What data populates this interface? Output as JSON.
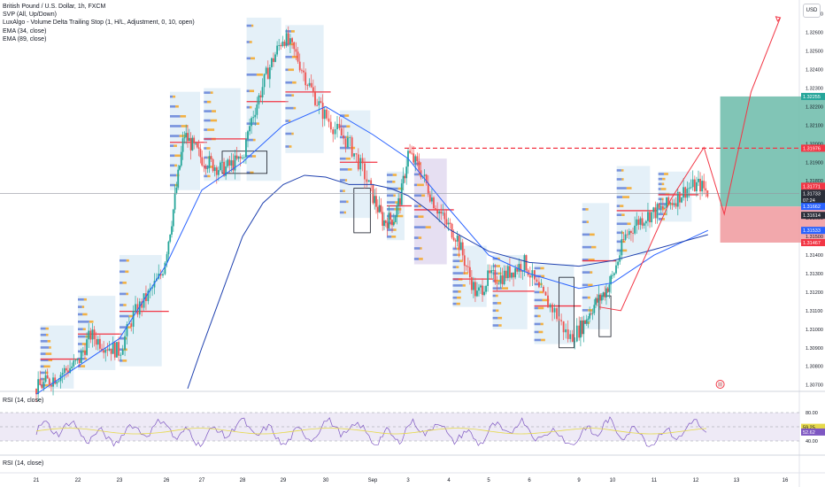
{
  "legend": {
    "symbol": "British Pound / U.S. Dollar, 1h, FXCM",
    "ind1": "SVP (All, Up/Down)",
    "ind2": "LuxAlgo - Volume Delta Trailing Stop (1, H/L, Adjustment, 0, 10, open)",
    "ind3": "EMA (34, close)",
    "ind4": "EMA (89, close)"
  },
  "currency_button": "USD",
  "rsi_panel_1": {
    "label": "RSI (14, close)",
    "levels": [
      "80.00",
      "60.00",
      "40.00"
    ],
    "badges": [
      "59.25",
      "52.62"
    ]
  },
  "rsi_panel_2": {
    "label": "RSI (14, close)"
  },
  "colors": {
    "up": "#26a69a",
    "down": "#ef5350",
    "ema_blue": "#2962ff",
    "poc": "#f23645",
    "svp_up": "#5b7bd6",
    "svp_down": "#f5a623",
    "box_blue": "#b3d4ea",
    "box_purple": "#b8a3d9",
    "target": "#73bfae",
    "stop": "#f19fa3",
    "rsi_line": "#7e57c2",
    "rsi_ma": "#e6d94a",
    "rsi_band": "#ece8f5"
  },
  "chart_data": {
    "type": "candlestick",
    "title": "British Pound / U.S. Dollar, 1h, FXCM",
    "x_ticks": [
      "21",
      "22",
      "23",
      "26",
      "27",
      "28",
      "29",
      "30",
      "Sep",
      "3",
      "4",
      "5",
      "6",
      "9",
      "10",
      "11",
      "12",
      "13",
      "16"
    ],
    "y_ticks": [
      "1.32700",
      "1.32600",
      "1.32500",
      "1.32400",
      "1.32300",
      "1.32200",
      "1.32100",
      "1.32000",
      "1.31900",
      "1.31800",
      "1.31700",
      "1.31600",
      "1.31500",
      "1.31400",
      "1.31300",
      "1.31200",
      "1.31100",
      "1.31000",
      "1.30900",
      "1.30800",
      "1.30700"
    ],
    "ylim": [
      1.30665,
      1.32775
    ],
    "price_badges": [
      {
        "label": "1.32255",
        "value": 1.32255,
        "color": "#26a69a"
      },
      {
        "label": "1.31976",
        "value": 1.31976,
        "color": "#f23645"
      },
      {
        "label": "1.31771",
        "value": 1.31771,
        "color": "#f23645"
      },
      {
        "label": "1.31733",
        "value": 1.31733,
        "color": "#2a2e39"
      },
      {
        "label": "07:24",
        "value": 1.31697,
        "color": "#2a2e39"
      },
      {
        "label": "1.31662",
        "value": 1.31662,
        "color": "#2962ff"
      },
      {
        "label": "1.31614",
        "value": 1.31614,
        "color": "#2a2e39"
      },
      {
        "label": "1.31533",
        "value": 1.31533,
        "color": "#2962ff"
      },
      {
        "label": "1.31467",
        "value": 1.31467,
        "color": "#f23645"
      }
    ],
    "close_path": [
      [
        21,
        1.3068
      ],
      [
        22,
        1.3082
      ],
      [
        22.3,
        1.3097
      ],
      [
        22.6,
        1.3092
      ],
      [
        23,
        1.3088
      ],
      [
        23.3,
        1.3108
      ],
      [
        23.6,
        1.3118
      ],
      [
        23.9,
        1.313
      ],
      [
        24.2,
        1.3165
      ],
      [
        24.5,
        1.3205
      ],
      [
        25.0,
        1.3192
      ],
      [
        25.5,
        1.3186
      ],
      [
        26.0,
        1.3192
      ],
      [
        26.2,
        1.3212
      ],
      [
        26.6,
        1.3238
      ],
      [
        27.0,
        1.3258
      ],
      [
        27.3,
        1.3248
      ],
      [
        27.6,
        1.3232
      ],
      [
        27.9,
        1.3218
      ],
      [
        28.2,
        1.3208
      ],
      [
        28.5,
        1.32
      ],
      [
        28.8,
        1.3185
      ],
      [
        29.0,
        1.3172
      ],
      [
        29.3,
        1.3158
      ],
      [
        29.6,
        1.316
      ],
      [
        29.8,
        1.3172
      ],
      [
        30.0,
        1.3195
      ],
      [
        30.3,
        1.3186
      ],
      [
        30.6,
        1.317
      ],
      [
        30.9,
        1.3158
      ],
      [
        31.2,
        1.315
      ],
      [
        31.5,
        1.313
      ],
      [
        31.7,
        1.3118
      ],
      [
        32.0,
        1.3128
      ],
      [
        32.3,
        1.3128
      ],
      [
        32.6,
        1.3132
      ],
      [
        32.9,
        1.3136
      ],
      [
        33.2,
        1.312
      ],
      [
        33.5,
        1.311
      ],
      [
        33.8,
        1.3095
      ],
      [
        34.1,
        1.3102
      ],
      [
        34.4,
        1.3112
      ],
      [
        34.7,
        1.3118
      ],
      [
        35.0,
        1.3128
      ],
      [
        35.3,
        1.315
      ],
      [
        35.6,
        1.3158
      ],
      [
        35.9,
        1.3162
      ],
      [
        36.2,
        1.3165
      ],
      [
        36.5,
        1.317
      ],
      [
        36.8,
        1.3176
      ],
      [
        37.1,
        1.3178
      ],
      [
        37.3,
        1.31733
      ]
    ],
    "ema34": [
      [
        21,
        1.3065
      ],
      [
        22,
        1.308
      ],
      [
        23,
        1.3095
      ],
      [
        24,
        1.3135
      ],
      [
        25,
        1.3175
      ],
      [
        26,
        1.319
      ],
      [
        27,
        1.321
      ],
      [
        28,
        1.322
      ],
      [
        29,
        1.3205
      ],
      [
        30,
        1.3192
      ],
      [
        31,
        1.3165
      ],
      [
        32,
        1.314
      ],
      [
        33,
        1.313
      ],
      [
        34,
        1.3122
      ],
      [
        35,
        1.3125
      ],
      [
        36,
        1.314
      ],
      [
        37.3,
        1.31533
      ]
    ],
    "ema89": [
      [
        24.6,
        1.3068
      ],
      [
        25,
        1.309
      ],
      [
        25.5,
        1.312
      ],
      [
        26,
        1.315
      ],
      [
        26.5,
        1.3168
      ],
      [
        27,
        1.3178
      ],
      [
        27.5,
        1.3183
      ],
      [
        28,
        1.3182
      ],
      [
        28.5,
        1.3178
      ],
      [
        29,
        1.3178
      ],
      [
        29.5,
        1.3176
      ],
      [
        30,
        1.3172
      ],
      [
        30.5,
        1.3164
      ],
      [
        31,
        1.3154
      ],
      [
        32,
        1.3142
      ],
      [
        33,
        1.3136
      ],
      [
        34,
        1.3134
      ],
      [
        35,
        1.3137
      ],
      [
        36,
        1.3143
      ],
      [
        37.3,
        1.3151
      ]
    ],
    "position": {
      "entry": 1.31662,
      "target": 1.32255,
      "stop": 1.31467,
      "x_start": 37.6,
      "x_end": 40.4
    },
    "dashed_level": 1.31976,
    "rsi": {
      "ylim": [
        0,
        100
      ],
      "levels": [
        80,
        60,
        40
      ]
    }
  }
}
